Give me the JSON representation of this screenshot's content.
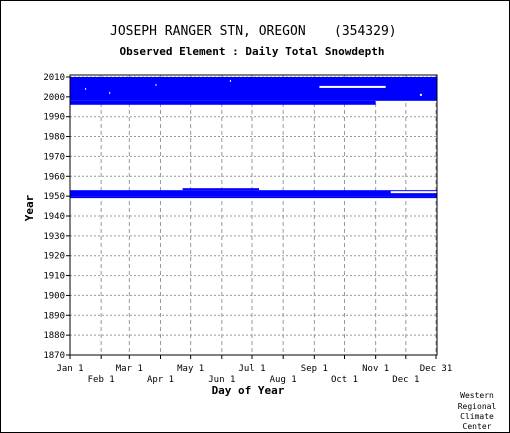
{
  "chart_data": {
    "type": "heatmap",
    "title": "JOSEPH RANGER STN, OREGON",
    "station_id": "(354329)",
    "subtitle": "Observed Element : Daily Total Snowdepth",
    "xlabel": "Day of Year",
    "ylabel": "Year",
    "xlim": [
      1,
      366
    ],
    "ylim": [
      1870,
      2011
    ],
    "x_ticks_top_row": [
      {
        "label": "Jan 1",
        "day": 1
      },
      {
        "label": "Mar 1",
        "day": 60
      },
      {
        "label": "May 1",
        "day": 121
      },
      {
        "label": "Jul 1",
        "day": 182
      },
      {
        "label": "Sep 1",
        "day": 244
      },
      {
        "label": "Nov 1",
        "day": 305
      },
      {
        "label": "Dec 31",
        "day": 365
      }
    ],
    "x_ticks_bottom_row": [
      {
        "label": "Feb 1",
        "day": 32
      },
      {
        "label": "Apr 1",
        "day": 91
      },
      {
        "label": "Jun 1",
        "day": 152
      },
      {
        "label": "Aug 1",
        "day": 213
      },
      {
        "label": "Oct 1",
        "day": 274
      },
      {
        "label": "Dec 1",
        "day": 335
      }
    ],
    "y_ticks": [
      "1870",
      "1880",
      "1890",
      "1900",
      "1910",
      "1920",
      "1930",
      "1940",
      "1950",
      "1960",
      "1970",
      "1980",
      "1990",
      "2000",
      "2010"
    ],
    "series": [
      {
        "data_blocks": [
          {
            "start_day": 1,
            "end_day": 366,
            "start_year": 1998,
            "end_year": 2010
          },
          {
            "start_day": 1,
            "end_day": 305,
            "start_year": 1996,
            "end_year": 1998
          },
          {
            "start_day": 1,
            "end_day": 366,
            "start_year": 1950,
            "end_year": 1953
          },
          {
            "start_day": 1,
            "end_day": 366,
            "start_year": 1949,
            "end_year": 1950
          },
          {
            "start_day": 113,
            "end_day": 189,
            "start_year": 1953,
            "end_year": 1954
          }
        ],
        "gaps": [
          {
            "start_day": 249,
            "end_day": 315,
            "year": 2005
          },
          {
            "start_day": 320,
            "end_day": 366,
            "year": 1952
          },
          {
            "start_day": 16,
            "end_day": 17,
            "year": 2004
          },
          {
            "start_day": 40,
            "end_day": 41,
            "year": 2002
          },
          {
            "start_day": 86,
            "end_day": 87,
            "year": 2006
          },
          {
            "start_day": 160,
            "end_day": 161,
            "year": 2008
          },
          {
            "start_day": 349,
            "end_day": 351,
            "year": 2001
          }
        ]
      }
    ],
    "grid": true,
    "colors": {
      "data": "#0000ff",
      "grid": "#999999",
      "axis": "#000000",
      "background": "#ffffff"
    }
  },
  "credit": [
    "Western",
    "Regional",
    "Climate",
    "Center"
  ]
}
